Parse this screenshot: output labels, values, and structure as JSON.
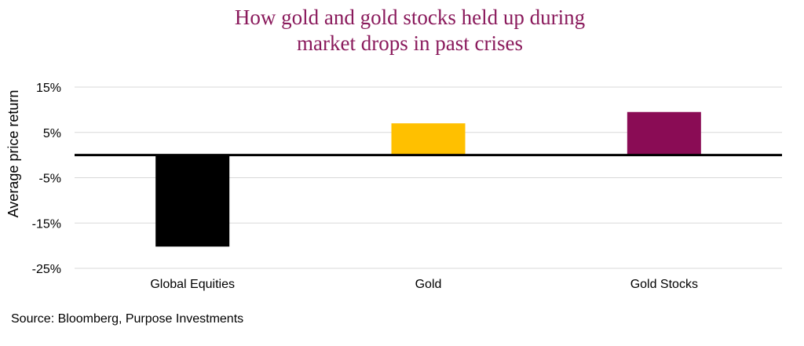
{
  "chart_data": {
    "type": "bar",
    "title_lines": [
      "How gold and gold stocks held up during",
      "market drops in past crises"
    ],
    "ylabel": "Average price return",
    "xlabel": "",
    "categories": [
      "Global Equities",
      "Gold",
      "Gold Stocks"
    ],
    "values": [
      -20.2,
      7.0,
      9.5
    ],
    "colors": [
      "#000000",
      "#ffc000",
      "#8a0c55"
    ],
    "ylim": [
      -25,
      15
    ],
    "yticks": [
      15,
      5,
      -5,
      -15,
      -25
    ],
    "ytick_labels": [
      "15%",
      "5%",
      "-5%",
      "-15%",
      "-25%"
    ],
    "grid": true,
    "legend": "none"
  },
  "source": "Source: Bloomberg, Purpose Investments"
}
